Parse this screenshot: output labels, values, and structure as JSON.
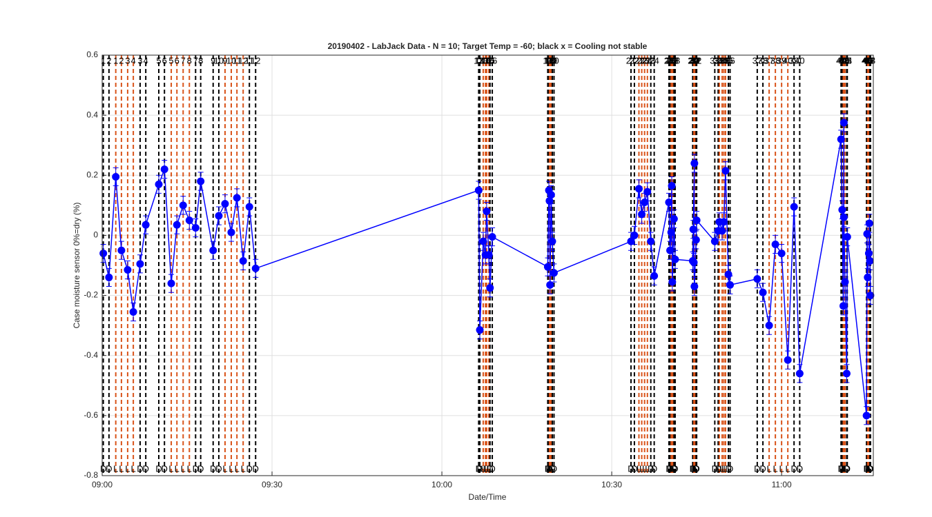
{
  "chart_data": {
    "type": "errorbar-line",
    "title": "20190402 - LabJack Data - N = 10; Target Temp = -60; black x = Cooling not stable",
    "xlabel": "Date/Time",
    "ylabel": "Case moisture sensor 0%=dry (%)",
    "xlim": [
      540,
      676.2
    ],
    "xticks": [
      {
        "value": 540,
        "label": "09:00"
      },
      {
        "value": 570,
        "label": "09:30"
      },
      {
        "value": 600,
        "label": "10:00"
      },
      {
        "value": 630,
        "label": "10:30"
      },
      {
        "value": 660,
        "label": "11:00"
      }
    ],
    "ylim": [
      -0.8,
      0.6
    ],
    "yticks": [
      -0.8,
      -0.6,
      -0.4,
      -0.2,
      0,
      0.2,
      0.4,
      0.6
    ],
    "grid": true,
    "x": [
      540.2,
      541.2,
      542.4,
      543.4,
      544.5,
      545.5,
      546.7,
      547.7,
      550.0,
      551.0,
      552.2,
      553.2,
      554.3,
      555.4,
      556.5,
      557.4,
      559.6,
      560.6,
      561.7,
      562.8,
      563.8,
      564.9,
      566.0,
      567.1,
      606.5,
      606.7,
      607.3,
      607.7,
      607.9,
      608.3,
      608.5,
      608.9,
      618.7,
      618.9,
      619.0,
      619.1,
      619.3,
      619.5,
      619.8,
      633.4,
      634.0,
      634.8,
      635.3,
      635.8,
      636.3,
      636.9,
      637.5,
      640.1,
      640.3,
      640.5,
      640.6,
      640.7,
      641.0,
      641.2,
      644.3,
      644.4,
      644.6,
      644.5,
      644.6,
      644.9,
      645.0,
      648.2,
      648.8,
      649.0,
      649.5,
      649.8,
      650.1,
      650.6,
      650.9,
      655.7,
      656.7,
      657.8,
      658.9,
      660.0,
      661.1,
      662.2,
      663.2,
      670.5,
      670.7,
      670.9,
      671.0,
      671.0,
      671.2,
      671.5,
      671.6,
      675.0,
      675.1,
      675.2,
      675.4,
      675.5,
      675.6,
      675.7
    ],
    "series": [
      {
        "color": "#0000ff",
        "error": 0.03,
        "values": [
          -0.06,
          -0.14,
          0.195,
          -0.05,
          -0.115,
          -0.255,
          -0.095,
          0.035,
          0.17,
          0.22,
          -0.16,
          0.035,
          0.1,
          0.05,
          0.025,
          0.18,
          -0.05,
          0.065,
          0.105,
          0.01,
          0.125,
          -0.085,
          0.095,
          -0.11,
          0.15,
          -0.315,
          -0.02,
          -0.065,
          0.08,
          -0.065,
          -0.175,
          -0.005,
          -0.105,
          0.15,
          0.115,
          -0.165,
          0.135,
          -0.02,
          -0.125,
          -0.02,
          0.0,
          0.155,
          0.07,
          0.11,
          0.145,
          -0.02,
          -0.135,
          0.11,
          -0.05,
          0.01,
          0.165,
          -0.155,
          0.055,
          -0.08,
          -0.085,
          0.02,
          0.24,
          -0.09,
          -0.17,
          -0.015,
          0.05,
          -0.02,
          0.015,
          0.045,
          0.015,
          0.045,
          0.215,
          -0.13,
          -0.165,
          -0.145,
          -0.19,
          -0.3,
          -0.03,
          -0.06,
          -0.415,
          0.095,
          -0.46,
          0.32,
          0.085,
          -0.235,
          0.375,
          0.06,
          -0.155,
          -0.46,
          -0.005,
          -0.6,
          0.005,
          -0.14,
          -0.06,
          0.04,
          -0.085,
          -0.2
        ]
      }
    ],
    "event_colors": {
      "D": "#000000",
      "L": "#D95319"
    },
    "event_x": [
      540.2,
      541.2,
      542.4,
      543.4,
      544.5,
      545.5,
      546.7,
      547.7,
      550.0,
      551.0,
      552.2,
      553.2,
      554.3,
      555.4,
      556.5,
      557.4,
      559.6,
      560.6,
      561.7,
      562.8,
      563.8,
      564.9,
      566.0,
      567.1,
      606.5,
      606.7,
      607.3,
      607.7,
      607.9,
      608.3,
      608.5,
      608.9,
      618.7,
      618.9,
      619.0,
      619.1,
      619.2,
      619.3,
      619.5,
      619.8,
      633.4,
      634.0,
      634.8,
      635.3,
      635.8,
      636.3,
      636.9,
      637.5,
      640.1,
      640.3,
      640.5,
      640.6,
      640.7,
      640.9,
      641.0,
      641.2,
      644.3,
      644.4,
      644.5,
      644.6,
      644.7,
      644.8,
      644.9,
      645.0,
      648.2,
      648.8,
      649.0,
      649.5,
      649.8,
      650.1,
      650.6,
      650.9,
      655.7,
      656.7,
      657.8,
      658.9,
      660.0,
      661.1,
      662.2,
      663.2,
      670.5,
      670.7,
      670.9,
      671.0,
      671.1,
      671.2,
      671.5,
      671.6,
      675.0,
      675.1,
      675.2,
      675.3,
      675.4,
      675.5,
      675.6,
      675.7
    ],
    "event_top": [
      1,
      2,
      1,
      2,
      3,
      4,
      3,
      4,
      5,
      6,
      5,
      6,
      7,
      8,
      7,
      8,
      9,
      10,
      9,
      10,
      11,
      12,
      11,
      12,
      13,
      14,
      13,
      14,
      15,
      16,
      15,
      16,
      17,
      18,
      17,
      18,
      19,
      20,
      19,
      20,
      21,
      22,
      21,
      22,
      23,
      24,
      23,
      24,
      25,
      26,
      25,
      26,
      27,
      28,
      27,
      28,
      29,
      30,
      29,
      30,
      31,
      32,
      31,
      32,
      33,
      34,
      33,
      34,
      35,
      36,
      35,
      36,
      37,
      38,
      37,
      38,
      39,
      40,
      39,
      40,
      41,
      42,
      41,
      42,
      43,
      44,
      43,
      44,
      45,
      46,
      45,
      46,
      47,
      48,
      47,
      48
    ],
    "event_bottom": [
      "D",
      "D",
      "L",
      "L",
      "L",
      "L",
      "D",
      "D",
      "D",
      "D",
      "L",
      "L",
      "L",
      "L",
      "D",
      "D",
      "D",
      "D",
      "L",
      "L",
      "L",
      "L",
      "D",
      "D",
      "D",
      "D",
      "L",
      "L",
      "L",
      "L",
      "D",
      "D",
      "D",
      "D",
      "L",
      "L",
      "L",
      "L",
      "D",
      "D",
      "D",
      "D",
      "L",
      "L",
      "L",
      "L",
      "D",
      "D",
      "D",
      "D",
      "L",
      "L",
      "L",
      "L",
      "D",
      "D",
      "D",
      "D",
      "L",
      "L",
      "L",
      "L",
      "D",
      "D",
      "D",
      "D",
      "L",
      "L",
      "L",
      "L",
      "D",
      "D",
      "D",
      "D",
      "L",
      "L",
      "L",
      "L",
      "D",
      "D",
      "D",
      "D",
      "L",
      "L",
      "L",
      "L",
      "D",
      "D",
      "D",
      "D",
      "L",
      "L",
      "L",
      "L",
      "D",
      "D"
    ]
  }
}
